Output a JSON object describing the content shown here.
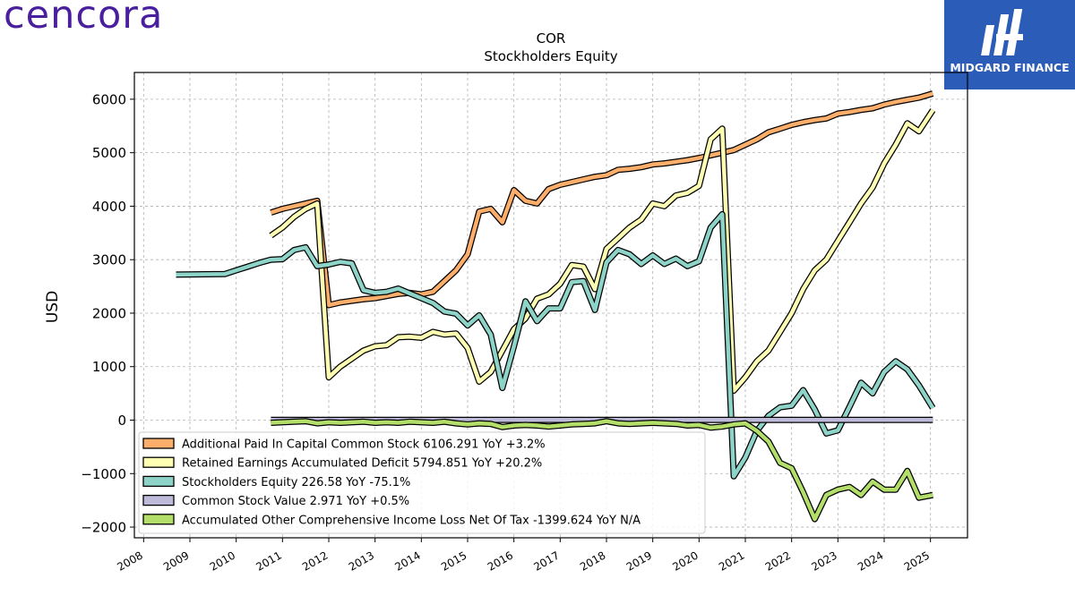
{
  "brand": {
    "logo_text": "cencora",
    "logo_color": "#4a1f9e"
  },
  "badge": {
    "label": "MIDGARD FINANCE",
    "bg_color": "#2b5cb8",
    "icon": "midgard-m-logo-icon"
  },
  "chart_data": {
    "type": "line",
    "title": "COR",
    "subtitle": "Stockholders  Equity",
    "xlabel": "",
    "ylabel": "USD",
    "xlim": [
      2007.8,
      2025.8
    ],
    "ylim": [
      -2200,
      6500
    ],
    "x_ticks": [
      2008,
      2009,
      2010,
      2011,
      2012,
      2013,
      2014,
      2015,
      2016,
      2017,
      2018,
      2019,
      2020,
      2021,
      2022,
      2023,
      2024,
      2025
    ],
    "x_tick_labels": [
      "2008",
      "2009",
      "2010",
      "2011",
      "2012",
      "2013",
      "2014",
      "2015",
      "2016",
      "2017",
      "2018",
      "2019",
      "2020",
      "2021",
      "2022",
      "2023",
      "2024",
      "2025"
    ],
    "y_ticks": [
      -2000,
      -1000,
      0,
      1000,
      2000,
      3000,
      4000,
      5000,
      6000
    ],
    "y_tick_labels": [
      "−2000",
      "−1000",
      "0",
      "1000",
      "2000",
      "3000",
      "4000",
      "5000",
      "6000"
    ],
    "grid": true,
    "legend_position": "lower-left",
    "series": [
      {
        "name": "Additional Paid In Capital Common Stock  6106.291 YoY +3.2%",
        "color": "#fdae6b",
        "x": [
          2010.75,
          2011.0,
          2011.25,
          2011.5,
          2011.75,
          2012.0,
          2012.25,
          2012.5,
          2012.75,
          2013.0,
          2013.25,
          2013.5,
          2013.75,
          2014.0,
          2014.25,
          2014.5,
          2014.75,
          2015.0,
          2015.25,
          2015.5,
          2015.75,
          2016.0,
          2016.25,
          2016.5,
          2016.75,
          2017.0,
          2017.25,
          2017.5,
          2017.75,
          2018.0,
          2018.25,
          2018.5,
          2018.75,
          2019.0,
          2019.25,
          2019.5,
          2019.75,
          2020.0,
          2020.25,
          2020.5,
          2020.75,
          2021.0,
          2021.25,
          2021.5,
          2021.75,
          2022.0,
          2022.25,
          2022.5,
          2022.75,
          2023.0,
          2023.25,
          2023.5,
          2023.75,
          2024.0,
          2024.25,
          2024.5,
          2024.75,
          2025.05
        ],
        "y": [
          3880,
          3950,
          4000,
          4050,
          4100,
          2150,
          2200,
          2230,
          2260,
          2280,
          2320,
          2360,
          2380,
          2350,
          2400,
          2600,
          2800,
          3100,
          3900,
          3950,
          3700,
          4300,
          4100,
          4050,
          4320,
          4400,
          4450,
          4500,
          4550,
          4580,
          4680,
          4700,
          4730,
          4780,
          4800,
          4830,
          4860,
          4900,
          4950,
          5000,
          5050,
          5150,
          5250,
          5380,
          5450,
          5520,
          5570,
          5610,
          5640,
          5730,
          5760,
          5800,
          5830,
          5900,
          5950,
          5990,
          6030,
          6106
        ]
      },
      {
        "name": "Retained Earnings Accumulated Deficit  5794.851 YoY +20.2%",
        "color": "#ffffb3",
        "x": [
          2010.75,
          2011.0,
          2011.25,
          2011.5,
          2011.75,
          2012.0,
          2012.25,
          2012.5,
          2012.75,
          2013.0,
          2013.25,
          2013.5,
          2013.75,
          2014.0,
          2014.25,
          2014.5,
          2014.75,
          2015.0,
          2015.25,
          2015.5,
          2015.75,
          2016.0,
          2016.25,
          2016.5,
          2016.75,
          2017.0,
          2017.25,
          2017.5,
          2017.75,
          2018.0,
          2018.25,
          2018.5,
          2018.75,
          2019.0,
          2019.25,
          2019.5,
          2019.75,
          2020.0,
          2020.25,
          2020.5,
          2020.75,
          2021.0,
          2021.25,
          2021.5,
          2021.75,
          2022.0,
          2022.25,
          2022.5,
          2022.75,
          2023.0,
          2023.25,
          2023.5,
          2023.75,
          2024.0,
          2024.25,
          2024.5,
          2024.75,
          2025.05
        ],
        "y": [
          3450,
          3600,
          3800,
          3950,
          4050,
          800,
          1000,
          1150,
          1300,
          1380,
          1400,
          1550,
          1560,
          1540,
          1650,
          1600,
          1620,
          1350,
          720,
          900,
          1300,
          1700,
          1900,
          2270,
          2350,
          2550,
          2900,
          2870,
          2450,
          3200,
          3400,
          3600,
          3750,
          4050,
          4000,
          4200,
          4250,
          4380,
          5250,
          5450,
          550,
          800,
          1100,
          1300,
          1650,
          2000,
          2450,
          2800,
          3000,
          3350,
          3700,
          4050,
          4350,
          4800,
          5150,
          5550,
          5400,
          5795
        ]
      },
      {
        "name": "Stockholders Equity  226.58 YoY -75.1%",
        "color": "#8dd3c7",
        "x": [
          2008.7,
          2009.75,
          2010.0,
          2010.25,
          2010.5,
          2010.75,
          2011.0,
          2011.25,
          2011.5,
          2011.75,
          2012.0,
          2012.25,
          2012.5,
          2012.75,
          2013.0,
          2013.25,
          2013.5,
          2013.75,
          2014.0,
          2014.25,
          2014.5,
          2014.75,
          2015.0,
          2015.25,
          2015.5,
          2015.75,
          2016.0,
          2016.25,
          2016.5,
          2016.75,
          2017.0,
          2017.25,
          2017.5,
          2017.75,
          2018.0,
          2018.25,
          2018.5,
          2018.75,
          2019.0,
          2019.25,
          2019.5,
          2019.75,
          2020.0,
          2020.25,
          2020.5,
          2020.75,
          2021.0,
          2021.25,
          2021.5,
          2021.75,
          2022.0,
          2022.25,
          2022.5,
          2022.75,
          2023.0,
          2023.25,
          2023.5,
          2023.75,
          2024.0,
          2024.25,
          2024.5,
          2024.75,
          2025.05
        ],
        "y": [
          2720,
          2730,
          2800,
          2870,
          2940,
          3000,
          3010,
          3180,
          3230,
          2880,
          2910,
          2960,
          2930,
          2430,
          2380,
          2400,
          2460,
          2370,
          2280,
          2190,
          2030,
          1990,
          1770,
          1960,
          1600,
          600,
          1380,
          2220,
          1850,
          2090,
          2090,
          2580,
          2600,
          2060,
          2950,
          3180,
          3100,
          2920,
          3080,
          2920,
          3020,
          2880,
          2970,
          3600,
          3850,
          -1050,
          -700,
          -200,
          80,
          240,
          270,
          560,
          200,
          -250,
          -190,
          250,
          700,
          500,
          900,
          1100,
          950,
          650,
          227
        ]
      },
      {
        "name": "Common Stock Value  2.971 YoY +0.5%",
        "color": "#bebada",
        "x": [
          2010.75,
          2025.05
        ],
        "y": [
          3,
          3
        ]
      },
      {
        "name": "Accumulated Other Comprehensive Income Loss Net Of Tax  -1399.624 YoY N/A",
        "color": "#b3de69",
        "x": [
          2010.75,
          2011.0,
          2011.25,
          2011.5,
          2011.75,
          2012.0,
          2012.25,
          2012.5,
          2012.75,
          2013.0,
          2013.25,
          2013.5,
          2013.75,
          2014.0,
          2014.25,
          2014.5,
          2014.75,
          2015.0,
          2015.25,
          2015.5,
          2015.75,
          2016.0,
          2016.25,
          2016.5,
          2016.75,
          2017.0,
          2017.25,
          2017.5,
          2017.75,
          2018.0,
          2018.25,
          2018.5,
          2018.75,
          2019.0,
          2019.25,
          2019.5,
          2019.75,
          2020.0,
          2020.25,
          2020.5,
          2020.75,
          2021.0,
          2021.25,
          2021.5,
          2021.75,
          2022.0,
          2022.25,
          2022.5,
          2022.75,
          2023.0,
          2023.25,
          2023.5,
          2023.75,
          2024.0,
          2024.25,
          2024.5,
          2024.75,
          2025.05
        ],
        "y": [
          -50,
          -40,
          -30,
          -20,
          -60,
          -40,
          -50,
          -40,
          -30,
          -50,
          -40,
          -50,
          -30,
          -40,
          -50,
          -30,
          -60,
          -80,
          -60,
          -70,
          -130,
          -100,
          -90,
          -100,
          -120,
          -100,
          -80,
          -70,
          -60,
          -20,
          -60,
          -70,
          -60,
          -50,
          -60,
          -70,
          -100,
          -90,
          -140,
          -120,
          -80,
          -60,
          -200,
          -400,
          -800,
          -900,
          -1350,
          -1850,
          -1400,
          -1300,
          -1250,
          -1400,
          -1150,
          -1300,
          -1300,
          -950,
          -1450,
          -1400
        ]
      }
    ]
  }
}
